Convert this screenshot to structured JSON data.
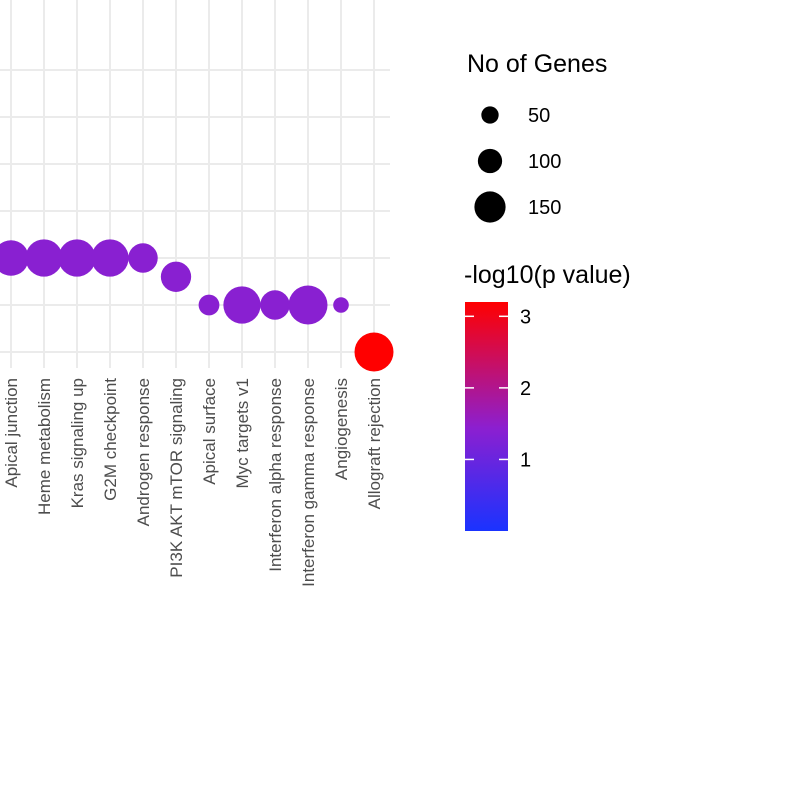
{
  "chart_data": {
    "type": "scatter",
    "subtype": "bubble",
    "categories": [
      "Apical junction",
      "Heme metabolism",
      "Kras signaling up",
      "G2M checkpoint",
      "Androgen response",
      "PI3K AKT mTOR signaling",
      "Apical surface",
      "Myc targets v1",
      "Interferon alpha response",
      "Interferon gamma response",
      "Angiogenesis",
      "Allograft rejection"
    ],
    "points": [
      {
        "category": "Apical junction",
        "level": 3,
        "genes": 130,
        "neg_log10_p": 1.4
      },
      {
        "category": "Heme metabolism",
        "level": 3,
        "genes": 140,
        "neg_log10_p": 1.4
      },
      {
        "category": "Kras signaling up",
        "level": 3,
        "genes": 140,
        "neg_log10_p": 1.4
      },
      {
        "category": "G2M checkpoint",
        "level": 3,
        "genes": 140,
        "neg_log10_p": 1.4
      },
      {
        "category": "Androgen response",
        "level": 3,
        "genes": 95,
        "neg_log10_p": 1.4
      },
      {
        "category": "PI3K AKT mTOR signaling",
        "level": 2.6,
        "genes": 100,
        "neg_log10_p": 1.4
      },
      {
        "category": "Apical surface",
        "level": 2,
        "genes": 45,
        "neg_log10_p": 1.4
      },
      {
        "category": "Myc targets v1",
        "level": 2,
        "genes": 140,
        "neg_log10_p": 1.4
      },
      {
        "category": "Interferon alpha response",
        "level": 2,
        "genes": 95,
        "neg_log10_p": 1.4
      },
      {
        "category": "Interferon gamma response",
        "level": 2,
        "genes": 150,
        "neg_log10_p": 1.4
      },
      {
        "category": "Angiogenesis",
        "level": 2,
        "genes": 15,
        "neg_log10_p": 1.4
      },
      {
        "category": "Allograft rejection",
        "level": 1,
        "genes": 150,
        "neg_log10_p": 3.2
      }
    ],
    "ylim": [
      0.5,
      7
    ],
    "grid": true,
    "legend_position": "right",
    "size_legend": {
      "title": "No of Genes",
      "entries": [
        {
          "label": "50",
          "value": 50
        },
        {
          "label": "100",
          "value": 100
        },
        {
          "label": "150",
          "value": 150
        }
      ]
    },
    "color_legend": {
      "title": "-log10(p value)",
      "ticks": [
        {
          "label": "1",
          "value": 1
        },
        {
          "label": "2",
          "value": 2
        },
        {
          "label": "3",
          "value": 3
        }
      ],
      "range": [
        0,
        3.2
      ],
      "low_color": "#1a33ff",
      "mid_color": "#8c1fd0",
      "high_color": "#ff0000"
    }
  },
  "colors": {
    "grid": "#ebebeb",
    "tick_label": "#4d4d4d",
    "size_key": "#000000"
  }
}
